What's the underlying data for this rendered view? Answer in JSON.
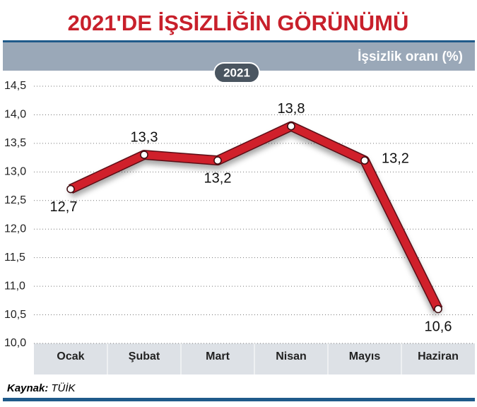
{
  "chart_data": {
    "type": "line",
    "title": "2021'DE İŞSİZLİĞİN GÖRÜNÜMÜ",
    "subtitle": "İşsizlik oranı (%)",
    "badge": "2021",
    "source_label": "Kaynak:",
    "source": "TÜİK",
    "categories": [
      "Ocak",
      "Şubat",
      "Mart",
      "Nisan",
      "Mayıs",
      "Haziran"
    ],
    "values": [
      12.7,
      13.3,
      13.2,
      13.8,
      13.2,
      10.6
    ],
    "value_labels": [
      "12,7",
      "13,3",
      "13,2",
      "13,8",
      "13,2",
      "10,6"
    ],
    "color": "#d0202b",
    "ylim": [
      10,
      14.5
    ],
    "yticks": [
      {
        "value": 10,
        "label": "10,0"
      },
      {
        "value": 10.5,
        "label": "10,5"
      },
      {
        "value": 11,
        "label": "11,0"
      },
      {
        "value": 11.5,
        "label": "11,5"
      },
      {
        "value": 12,
        "label": "12,0"
      },
      {
        "value": 12.5,
        "label": "12,5"
      },
      {
        "value": 13,
        "label": "13,0"
      },
      {
        "value": 13.5,
        "label": "13,5"
      },
      {
        "value": 14,
        "label": "14,0"
      },
      {
        "value": 14.5,
        "label": "14,5"
      }
    ],
    "grid": true
  }
}
